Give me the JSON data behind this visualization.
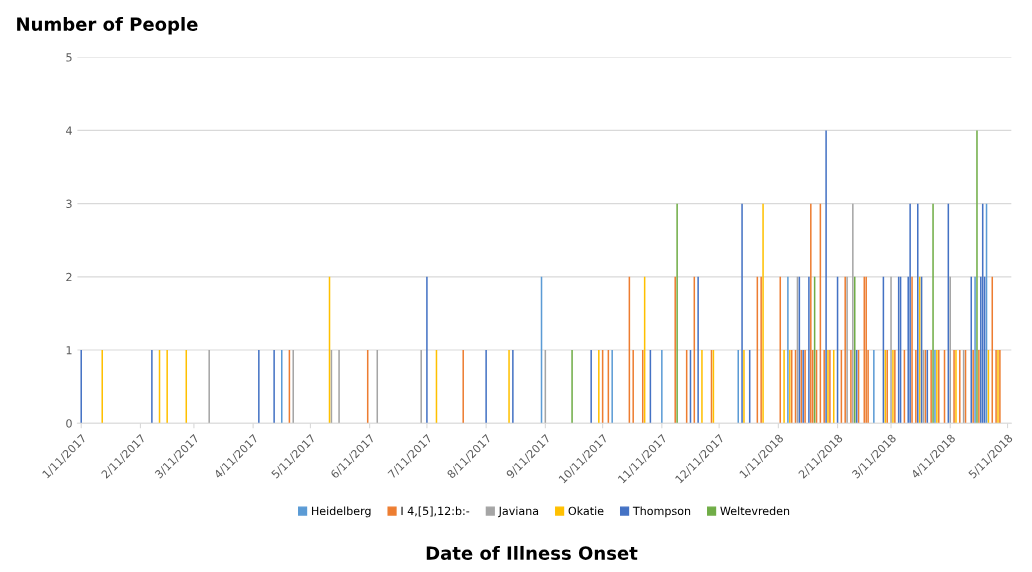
{
  "chart_data": {
    "type": "bar",
    "ylabel": "Number of People",
    "xlabel": "Date of Illness Onset",
    "xlim": [
      "2017-01-09",
      "2018-05-13"
    ],
    "ylim": [
      0,
      5
    ],
    "yticks": [
      0,
      1,
      2,
      3,
      4,
      5
    ],
    "xticks": [
      {
        "value": "2017-01-11",
        "label": "1/11/2017"
      },
      {
        "value": "2017-02-11",
        "label": "2/11/2017"
      },
      {
        "value": "2017-03-11",
        "label": "3/11/2017"
      },
      {
        "value": "2017-04-11",
        "label": "4/11/2017"
      },
      {
        "value": "2017-05-11",
        "label": "5/11/2017"
      },
      {
        "value": "2017-06-11",
        "label": "6/11/2017"
      },
      {
        "value": "2017-07-11",
        "label": "7/11/2017"
      },
      {
        "value": "2017-08-11",
        "label": "8/11/2017"
      },
      {
        "value": "2017-09-11",
        "label": "9/11/2017"
      },
      {
        "value": "2017-10-11",
        "label": "10/11/2017"
      },
      {
        "value": "2017-11-11",
        "label": "11/11/2017"
      },
      {
        "value": "2017-12-11",
        "label": "12/11/2017"
      },
      {
        "value": "2018-01-11",
        "label": "1/11/2018"
      },
      {
        "value": "2018-02-11",
        "label": "2/11/2018"
      },
      {
        "value": "2018-03-11",
        "label": "3/11/2018"
      },
      {
        "value": "2018-04-11",
        "label": "4/11/2018"
      },
      {
        "value": "2018-05-11",
        "label": "5/11/2018"
      }
    ],
    "grid": "y",
    "legend": "bottom",
    "series": [
      {
        "name": "Heidelberg",
        "color": "#5b9bd5",
        "x": [
          "2017-04-26",
          "2017-09-09",
          "2017-10-16",
          "2017-11-11",
          "2017-12-21",
          "2018-01-16",
          "2018-03-02",
          "2018-04-03",
          "2018-04-24",
          "2018-04-30"
        ],
        "values": [
          1,
          2,
          1,
          1,
          1,
          2,
          1,
          1,
          2,
          3
        ]
      },
      {
        "name": "I 4,[5],12:b:-",
        "color": "#ed7d31",
        "x": [
          "2017-04-30",
          "2017-06-10",
          "2017-07-30",
          "2017-10-11",
          "2017-10-14",
          "2017-10-25",
          "2017-10-27",
          "2017-11-01",
          "2017-11-18",
          "2017-11-24",
          "2017-11-28",
          "2017-12-07",
          "2017-12-31",
          "2018-01-02",
          "2018-01-12",
          "2018-01-18",
          "2018-01-20",
          "2018-01-23",
          "2018-01-25",
          "2018-01-28",
          "2018-01-29",
          "2018-01-31",
          "2018-02-02",
          "2018-02-04",
          "2018-02-07",
          "2018-02-13",
          "2018-02-15",
          "2018-02-18",
          "2018-02-22",
          "2018-02-25",
          "2018-02-26",
          "2018-02-27",
          "2018-03-09",
          "2018-03-13",
          "2018-03-18",
          "2018-03-22",
          "2018-03-24",
          "2018-03-29",
          "2018-04-01",
          "2018-04-05",
          "2018-04-08",
          "2018-04-13",
          "2018-04-16",
          "2018-04-19",
          "2018-04-23",
          "2018-04-26",
          "2018-05-03",
          "2018-05-05",
          "2018-05-07"
        ],
        "values": [
          1,
          1,
          1,
          1,
          1,
          2,
          1,
          1,
          2,
          1,
          2,
          1,
          2,
          2,
          2,
          1,
          1,
          1,
          1,
          3,
          1,
          1,
          3,
          1,
          1,
          1,
          2,
          1,
          1,
          2,
          2,
          1,
          1,
          1,
          1,
          2,
          1,
          1,
          1,
          1,
          1,
          1,
          1,
          1,
          1,
          1,
          2,
          1,
          1
        ]
      },
      {
        "name": "Javiana",
        "color": "#a5a5a5",
        "x": [
          "2017-03-19",
          "2017-05-02",
          "2017-05-22",
          "2017-05-26",
          "2017-06-15",
          "2017-07-08",
          "2017-09-11",
          "2018-01-21",
          "2018-02-16",
          "2018-02-19",
          "2018-03-11",
          "2018-03-28",
          "2018-04-11",
          "2018-04-18"
        ],
        "values": [
          1,
          1,
          1,
          1,
          1,
          1,
          1,
          2,
          2,
          3,
          2,
          1,
          2,
          1
        ]
      },
      {
        "name": "Okatie",
        "color": "#ffc000",
        "x": [
          "2017-01-22",
          "2017-02-21",
          "2017-02-25",
          "2017-03-07",
          "2017-05-21",
          "2017-07-16",
          "2017-08-23",
          "2017-10-09",
          "2017-11-02",
          "2017-12-02",
          "2017-12-08",
          "2017-12-24",
          "2018-01-03",
          "2018-01-14",
          "2018-01-17",
          "2018-02-06",
          "2018-02-09",
          "2018-03-08",
          "2018-03-12",
          "2018-03-26",
          "2018-04-04",
          "2018-04-14",
          "2018-05-01",
          "2018-05-06"
        ],
        "values": [
          1,
          1,
          1,
          1,
          2,
          1,
          1,
          1,
          2,
          1,
          1,
          1,
          3,
          1,
          1,
          1,
          1,
          1,
          1,
          2,
          1,
          1,
          1,
          1
        ]
      },
      {
        "name": "Thompson",
        "color": "#4472c4",
        "x": [
          "2017-01-11",
          "2017-02-17",
          "2017-04-14",
          "2017-04-22",
          "2017-07-11",
          "2017-08-11",
          "2017-08-25",
          "2017-10-05",
          "2017-11-05",
          "2017-11-26",
          "2017-11-30",
          "2017-12-23",
          "2017-12-27",
          "2018-01-22",
          "2018-01-24",
          "2018-01-27",
          "2018-02-05",
          "2018-02-11",
          "2018-02-21",
          "2018-03-07",
          "2018-03-15",
          "2018-03-16",
          "2018-03-20",
          "2018-03-21",
          "2018-03-25",
          "2018-03-27",
          "2018-03-30",
          "2018-04-10",
          "2018-04-22",
          "2018-04-27",
          "2018-04-28",
          "2018-04-29"
        ],
        "values": [
          1,
          1,
          1,
          1,
          2,
          1,
          1,
          1,
          1,
          1,
          2,
          3,
          1,
          2,
          1,
          2,
          4,
          2,
          1,
          2,
          2,
          2,
          2,
          3,
          3,
          2,
          1,
          3,
          2,
          2,
          3,
          2
        ]
      },
      {
        "name": "Weltevreden",
        "color": "#70ad47",
        "x": [
          "2017-09-25",
          "2017-11-19",
          "2018-01-30",
          "2018-02-20",
          "2018-04-02",
          "2018-04-25"
        ],
        "values": [
          1,
          3,
          2,
          2,
          3,
          4
        ]
      }
    ]
  }
}
